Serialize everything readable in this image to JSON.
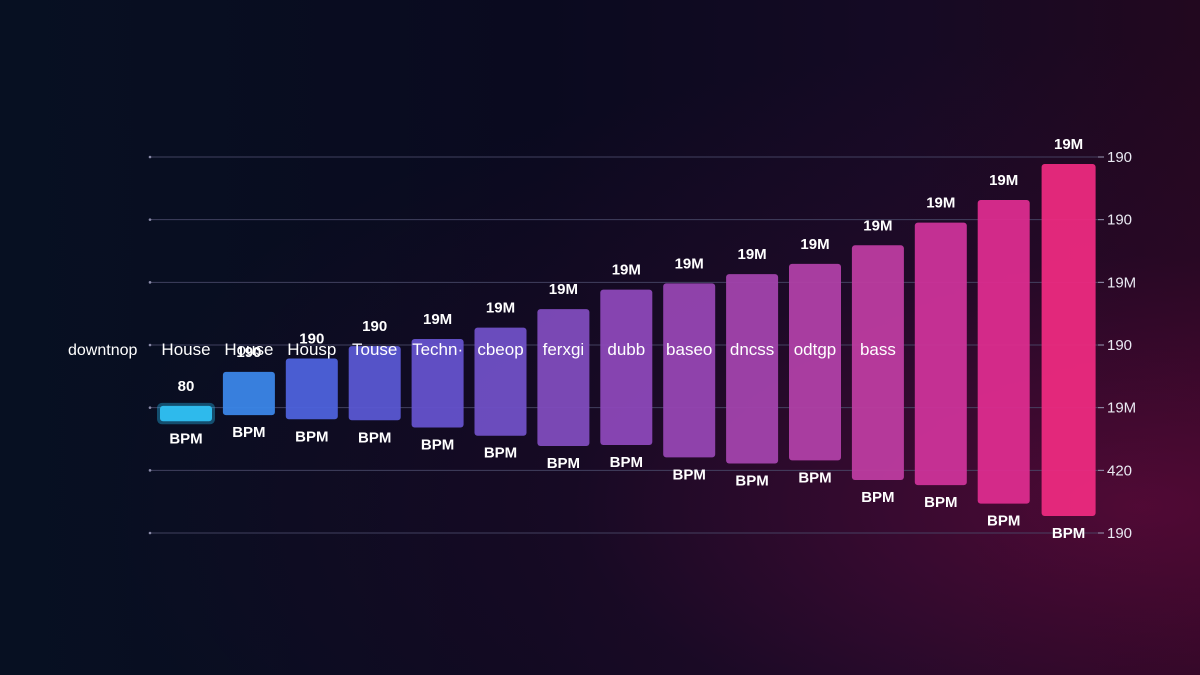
{
  "chart_data": {
    "type": "bar",
    "left_label": "downtnop",
    "categories": [
      "House",
      "House",
      "Housp",
      "Touse",
      "Techn·",
      "cbeop",
      "ferxgi",
      "dubb",
      "baseo",
      "dncss",
      "odtgp",
      "bass",
      "",
      "",
      ""
    ],
    "top_labels": [
      "80",
      "190",
      "190",
      "190",
      "19M",
      "19M",
      "19M",
      "19M",
      "19M",
      "19M",
      "19M",
      "19M",
      "19M",
      "19M",
      "19M"
    ],
    "bottom_labels": [
      "BPM",
      "BPM",
      "BPM",
      "BPM",
      "BPM",
      "BPM",
      "BPM",
      "BPM",
      "BPM",
      "BPM",
      "BPM",
      "BPM",
      "BPM",
      "BPM",
      "BPM"
    ],
    "y_tick_labels": [
      "190",
      "190",
      "19M",
      "190",
      "19M",
      "420",
      "190"
    ],
    "bar_ranges": [
      [
        0.55,
        0.7
      ],
      [
        0.61,
        1.03
      ],
      [
        0.57,
        1.16
      ],
      [
        0.56,
        1.28
      ],
      [
        0.49,
        1.35
      ],
      [
        0.41,
        1.46
      ],
      [
        0.31,
        1.64
      ],
      [
        0.32,
        1.83
      ],
      [
        0.2,
        1.89
      ],
      [
        0.14,
        1.98
      ],
      [
        0.17,
        2.08
      ],
      [
        -0.02,
        2.26
      ],
      [
        -0.07,
        2.48
      ],
      [
        -0.25,
        2.7
      ],
      [
        -0.37,
        3.05
      ]
    ],
    "ylim": [
      -0.5,
      3.3
    ],
    "grid": true,
    "colors": [
      "#2fc0f2",
      "#3b86e8",
      "#4e62dc",
      "#5a57d2",
      "#6552cc",
      "#7050c6",
      "#7f4cbd",
      "#8c48b8",
      "#9646b2",
      "#a243ac",
      "#b040a6",
      "#bd3ca0",
      "#cc3399",
      "#dc2c8e",
      "#ec2a80"
    ],
    "tick_color": "#e9e9f2",
    "grid_color": "#4a4a6a"
  }
}
